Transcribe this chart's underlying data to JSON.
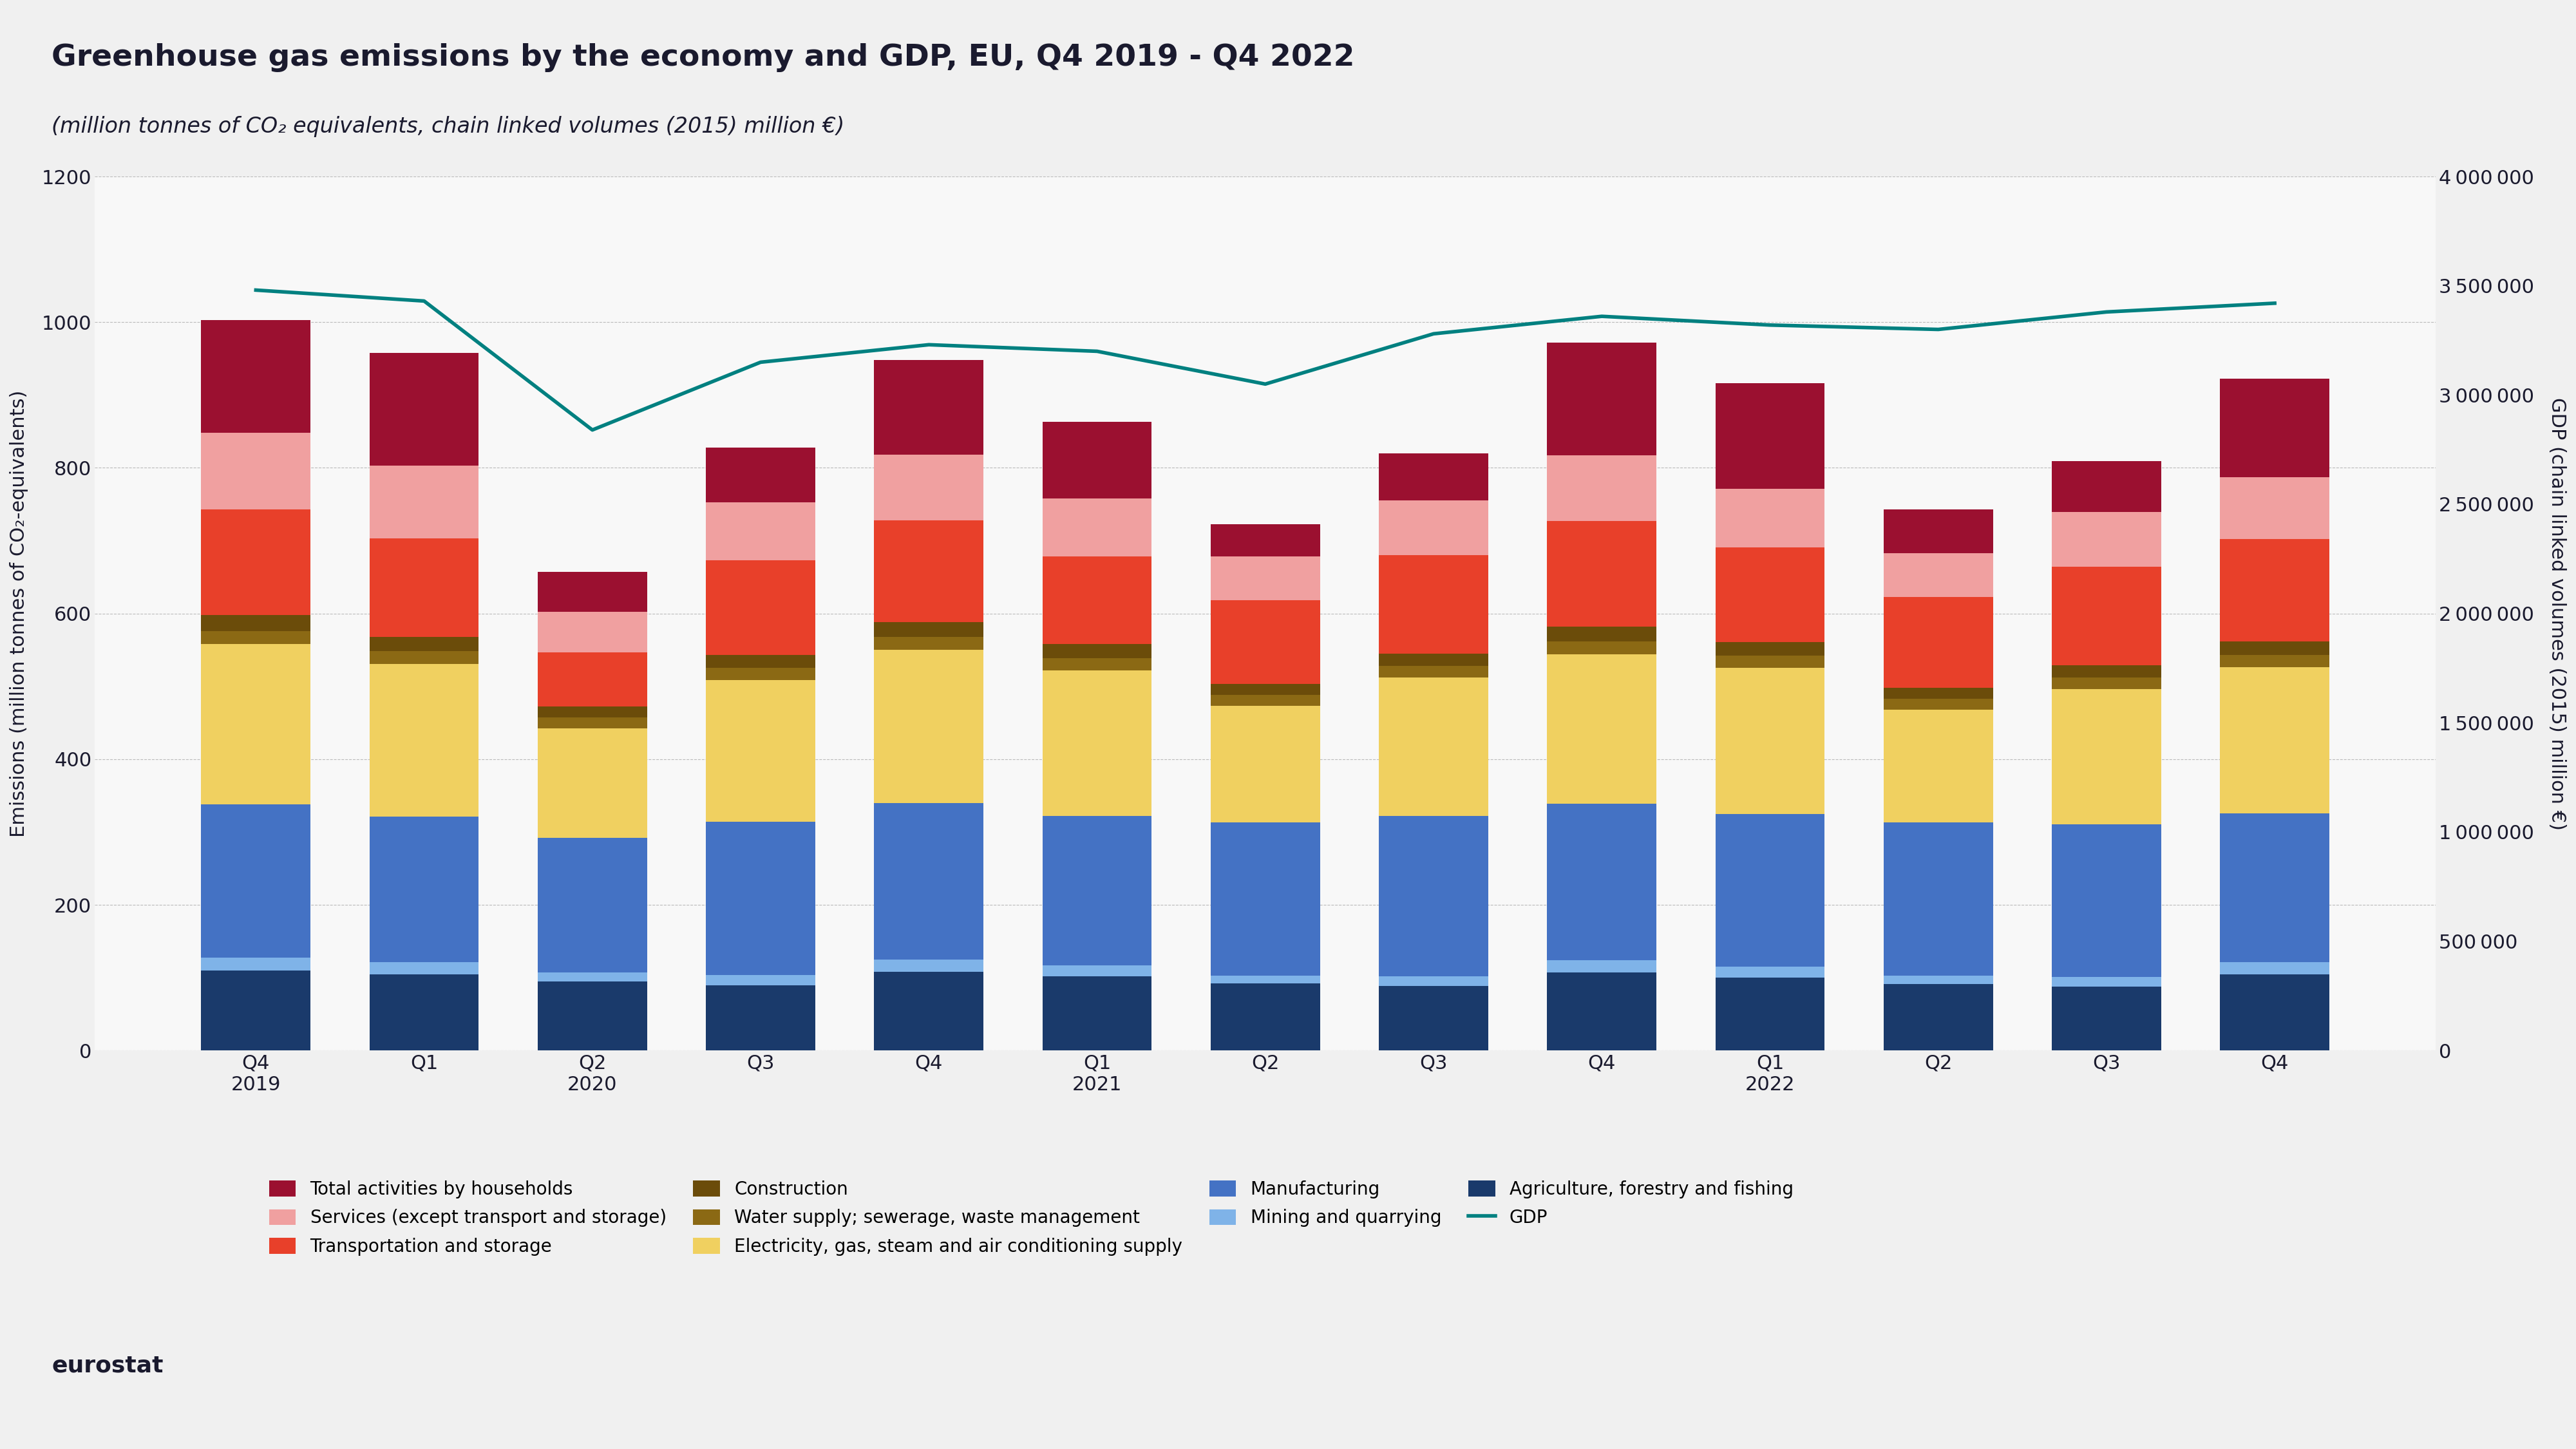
{
  "title": "Greenhouse gas emissions by the economy and GDP, EU, Q4 2019 - Q4 2022",
  "subtitle": "(million tonnes of CO₂ equivalents, chain linked volumes (2015) million €)",
  "ylabel_left": "Emissions (million tonnes of CO₂-equivalents)",
  "ylabel_right": "GDP (chain linked volumes (2015) million €)",
  "categories": [
    "Q4\n2019",
    "Q1",
    "Q2",
    "Q3",
    "Q4",
    "Q1",
    "Q2",
    "Q3",
    "Q4",
    "Q1",
    "Q2",
    "Q3",
    "Q4"
  ],
  "cat_labels": [
    "Q4\n2019",
    "Q1",
    "Q2",
    "Q3",
    "Q4",
    "Q1",
    "Q2",
    "Q3",
    "Q4",
    "Q1",
    "Q2",
    "Q3",
    "Q4"
  ],
  "year_labels": [
    "2019",
    "2020",
    "2021",
    "2022"
  ],
  "segments": {
    "Agriculture, forestry and fishing": {
      "values": [
        110,
        105,
        95,
        90,
        108,
        102,
        92,
        89,
        107,
        100,
        91,
        88,
        105
      ],
      "color": "#1a3a6b"
    },
    "Mining and quarrying": {
      "values": [
        18,
        16,
        12,
        14,
        17,
        15,
        11,
        13,
        17,
        15,
        12,
        13,
        16
      ],
      "color": "#7fb3e8"
    },
    "Manufacturing": {
      "values": [
        210,
        200,
        185,
        210,
        215,
        205,
        210,
        220,
        215,
        210,
        210,
        210,
        205
      ],
      "color": "#4472c4"
    },
    "Electricity, gas, steam and air conditioning supply": {
      "values": [
        220,
        210,
        150,
        195,
        210,
        200,
        160,
        190,
        205,
        200,
        155,
        185,
        200
      ],
      "color": "#f0d060"
    },
    "Water supply; sewerage, waste management": {
      "values": [
        18,
        17,
        15,
        16,
        18,
        17,
        15,
        16,
        18,
        17,
        15,
        16,
        17
      ],
      "color": "#8b6914"
    },
    "Construction": {
      "values": [
        22,
        20,
        15,
        18,
        20,
        19,
        15,
        17,
        20,
        19,
        15,
        17,
        19
      ],
      "color": "#6b4c0a"
    },
    "Transportation and storage": {
      "values": [
        145,
        135,
        75,
        130,
        140,
        120,
        115,
        135,
        145,
        130,
        125,
        135,
        140
      ],
      "color": "#e8402a"
    },
    "Services (except transport and storage)": {
      "values": [
        105,
        100,
        55,
        80,
        90,
        80,
        60,
        75,
        90,
        80,
        60,
        75,
        85
      ],
      "color": "#f0a0a0"
    },
    "Total activities by households": {
      "values": [
        155,
        155,
        55,
        75,
        130,
        105,
        45,
        65,
        155,
        145,
        60,
        70,
        135
      ],
      "color": "#9b1030"
    }
  },
  "gdp": [
    3480000,
    3430000,
    2840000,
    3150000,
    3230000,
    3200000,
    3050000,
    3280000,
    3360000,
    3320000,
    3300000,
    3380000,
    3420000
  ],
  "gdp_color": "#008080",
  "ylim_left": [
    0,
    1200
  ],
  "ylim_right": [
    0,
    4000000
  ],
  "yticks_left": [
    0,
    200,
    400,
    600,
    800,
    1000,
    1200
  ],
  "yticks_right": [
    0,
    500000,
    1000000,
    1500000,
    2000000,
    2500000,
    3000000,
    3500000,
    4000000
  ],
  "background_color": "#f0f0f0",
  "plot_bg_color": "#f8f8f8"
}
